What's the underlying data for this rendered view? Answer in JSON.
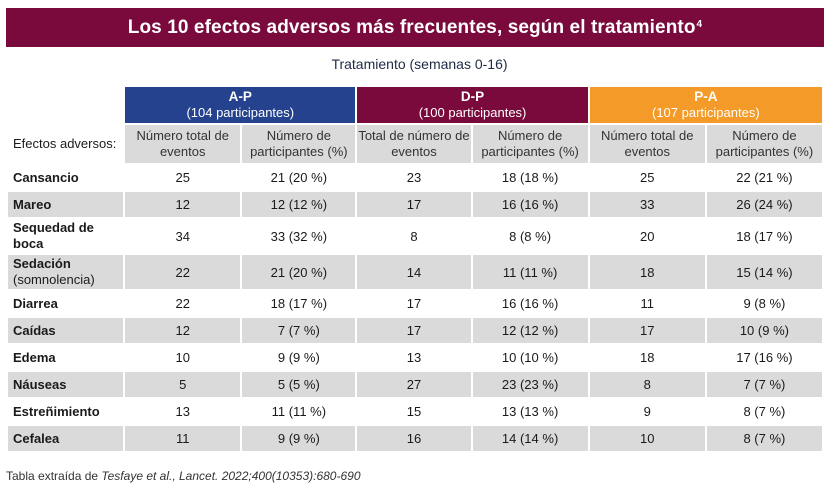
{
  "title": "Los 10 efectos adversos más frecuentes, según el tratamiento",
  "title_superscript": "4",
  "subtitle": "Tratamiento (semanas 0-16)",
  "groups": [
    {
      "name": "A-P",
      "participants": "(104 participantes)",
      "color": "#25428f"
    },
    {
      "name": "D-P",
      "participants": "(100 participantes)",
      "color": "#7a0a3c"
    },
    {
      "name": "P-A",
      "participants": "(107 participantes)",
      "color": "#f39a28"
    }
  ],
  "header": {
    "row_label": "Efectos adversos:",
    "columns": [
      "Número total de eventos",
      "Número de participantes (%)",
      "Total de número de eventos",
      "Número de participantes (%)",
      "Número total de eventos",
      "Número de participantes (%)"
    ]
  },
  "rows": [
    {
      "label": "Cansancio",
      "sub": "",
      "values": [
        "25",
        "21 (20 %)",
        "23",
        "18 (18 %)",
        "25",
        "22 (21 %)"
      ]
    },
    {
      "label": "Mareo",
      "sub": "",
      "values": [
        "12",
        "12 (12 %)",
        "17",
        "16 (16 %)",
        "33",
        "26 (24 %)"
      ]
    },
    {
      "label": "Sequedad de boca",
      "sub": "",
      "values": [
        "34",
        "33 (32 %)",
        "8",
        "8 (8 %)",
        "20",
        "18 (17 %)"
      ]
    },
    {
      "label": "Sedación",
      "sub": "(somnolencia)",
      "values": [
        "22",
        "21 (20 %)",
        "14",
        "11 (11 %)",
        "18",
        "15 (14 %)"
      ]
    },
    {
      "label": "Diarrea",
      "sub": "",
      "values": [
        "22",
        "18 (17 %)",
        "17",
        "16 (16 %)",
        "11",
        "9 (8 %)"
      ]
    },
    {
      "label": "Caídas",
      "sub": "",
      "values": [
        "12",
        "7 (7 %)",
        "17",
        "12 (12 %)",
        "17",
        "10 (9 %)"
      ]
    },
    {
      "label": "Edema",
      "sub": "",
      "values": [
        "10",
        "9 (9 %)",
        "13",
        "10 (10 %)",
        "18",
        "17 (16 %)"
      ]
    },
    {
      "label": "Náuseas",
      "sub": "",
      "values": [
        "5",
        "5 (5 %)",
        "27",
        "23 (23 %)",
        "8",
        "7 (7 %)"
      ]
    },
    {
      "label": "Estreñimiento",
      "sub": "",
      "values": [
        "13",
        "11 (11 %)",
        "15",
        "13 (13 %)",
        "9",
        "8 (7 %)"
      ]
    },
    {
      "label": "Cefalea",
      "sub": "",
      "values": [
        "11",
        "9 (9 %)",
        "16",
        "14 (14 %)",
        "10",
        "8 (7 %)"
      ]
    }
  ],
  "footnote": {
    "prefix": "Tabla extraída de ",
    "citation": "Tesfaye et al., Lancet. 2022;400(10353):680-690"
  }
}
